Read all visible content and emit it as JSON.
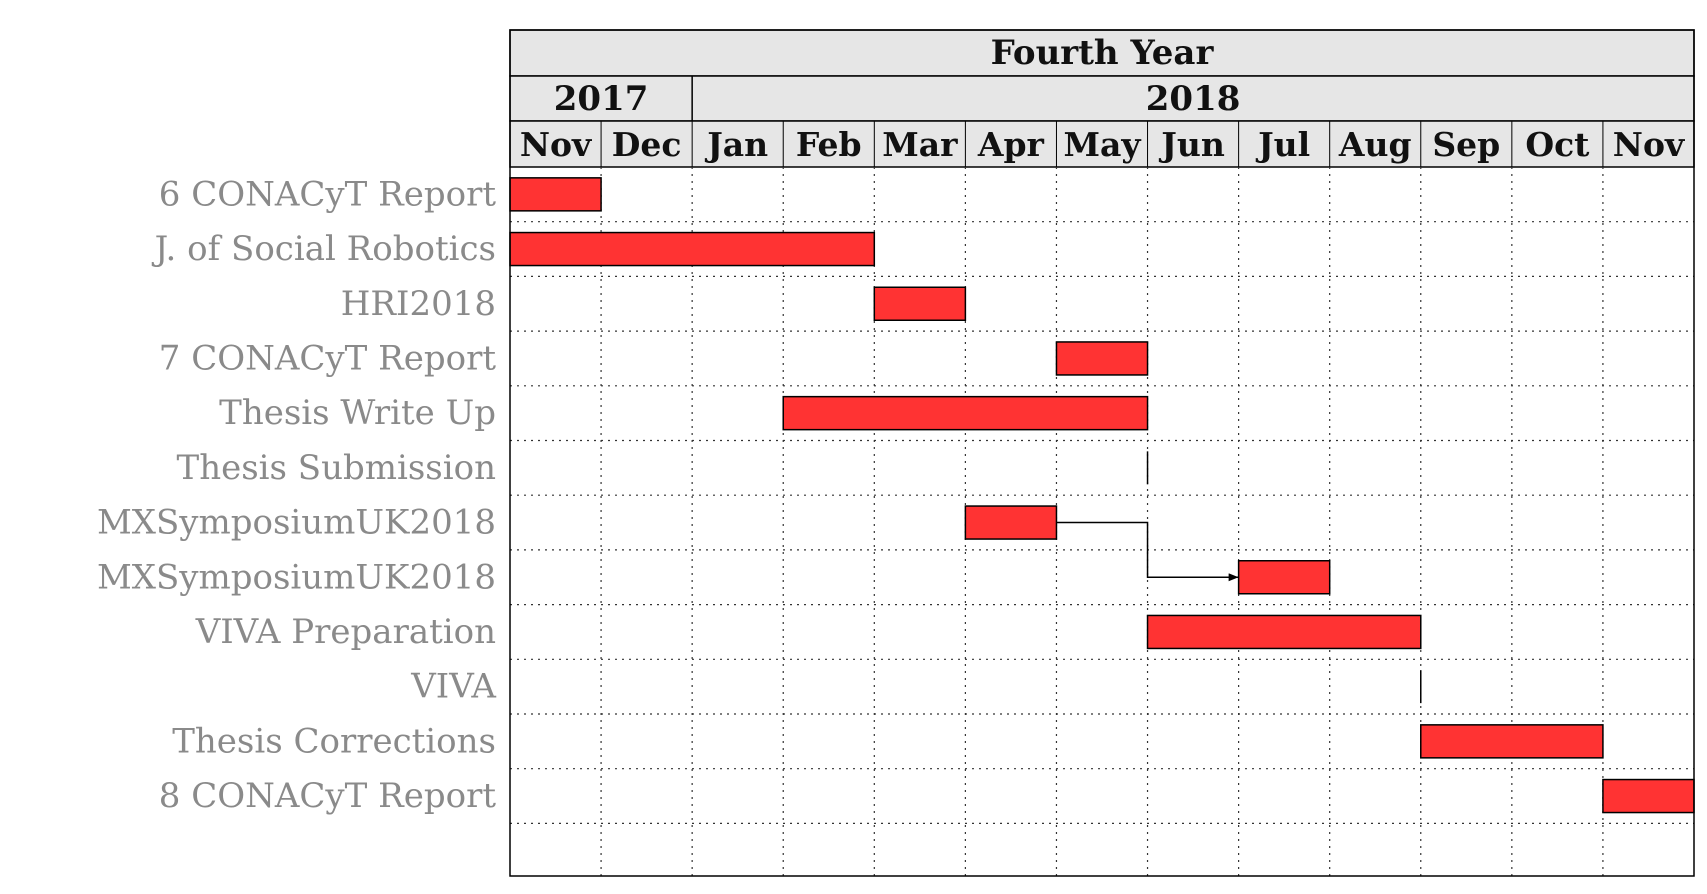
{
  "chart_data": {
    "type": "gantt",
    "title": "Fourth Year",
    "years": [
      {
        "label": "2017",
        "span": 2
      },
      {
        "label": "2018",
        "span": 11
      }
    ],
    "months": [
      "Nov",
      "Dec",
      "Jan",
      "Feb",
      "Mar",
      "Apr",
      "May",
      "Jun",
      "Jul",
      "Aug",
      "Sep",
      "Oct",
      "Nov"
    ],
    "tasks": [
      {
        "label": "6 CONACyT Report",
        "start": 0,
        "end": 1
      },
      {
        "label": "J. of Social Robotics",
        "start": 0,
        "end": 4
      },
      {
        "label": "HRI2018",
        "start": 4,
        "end": 5
      },
      {
        "label": "7 CONACyT Report",
        "start": 6,
        "end": 7
      },
      {
        "label": "Thesis Write Up",
        "start": 3,
        "end": 7
      },
      {
        "label": "Thesis Submission",
        "start": 7,
        "end": 7,
        "milestone": true
      },
      {
        "label": "MXSymposiumUK2018",
        "start": 5,
        "end": 6
      },
      {
        "label": "MXSymposiumUK2018",
        "start": 8,
        "end": 9
      },
      {
        "label": "VIVA Preparation",
        "start": 7,
        "end": 10
      },
      {
        "label": "VIVA",
        "start": 10,
        "end": 10,
        "milestone": true
      },
      {
        "label": "Thesis Corrections",
        "start": 10,
        "end": 12
      },
      {
        "label": "8 CONACyT Report",
        "start": 12,
        "end": 13
      }
    ],
    "links": [
      {
        "from": 6,
        "to": 7
      }
    ],
    "colors": {
      "bar": "#ff3333",
      "header_bg": "#e6e6e6",
      "label": "#8a8a8a"
    }
  }
}
